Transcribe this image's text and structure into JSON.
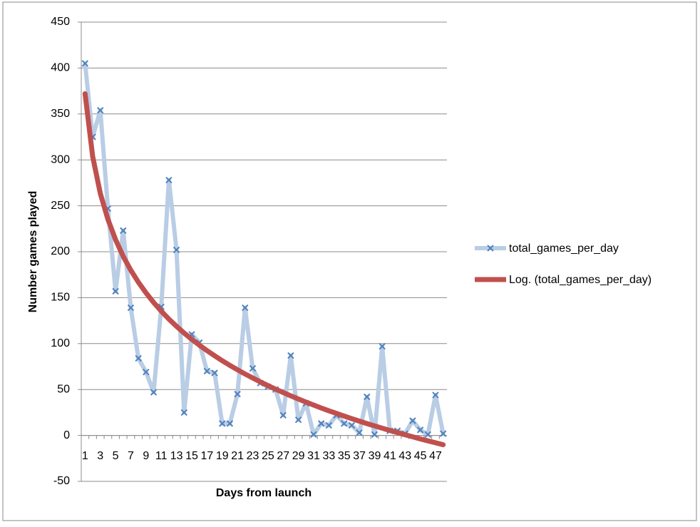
{
  "chart_data": {
    "type": "line",
    "x_label": "Days from launch",
    "y_label": "Number games played",
    "categories": [
      "1",
      null,
      "3",
      null,
      "5",
      null,
      "7",
      null,
      "9",
      null,
      "11",
      null,
      "13",
      null,
      "15",
      null,
      "17",
      null,
      "19",
      null,
      "21",
      null,
      "23",
      null,
      "25",
      null,
      "27",
      null,
      "29",
      null,
      "31",
      null,
      "33",
      null,
      "35",
      null,
      "37",
      null,
      "39",
      null,
      "41",
      null,
      "43",
      null,
      "45",
      null,
      "47",
      null
    ],
    "series": [
      {
        "name": "total_games_per_day",
        "color": "#b9cde5",
        "marker_color": "#4f81bd",
        "values": [
          405,
          325,
          354,
          247,
          157,
          223,
          139,
          84,
          69,
          47,
          140,
          278,
          202,
          25,
          110,
          101,
          70,
          68,
          13,
          13,
          45,
          139,
          73,
          57,
          53,
          50,
          22,
          87,
          17,
          35,
          1,
          13,
          11,
          22,
          13,
          11,
          3,
          42,
          1,
          97,
          5,
          5,
          2,
          16,
          6,
          1,
          44,
          2
        ]
      },
      {
        "name": "Log. (total_games_per_day)",
        "color": "#c0504d",
        "values": [
          372,
          303.6,
          263.5,
          235.2,
          213.2,
          195.1,
          179.9,
          166.8,
          155.2,
          144.7,
          135.3,
          126.7,
          118.8,
          111.5,
          104.7,
          98.3,
          92.4,
          86.8,
          81.4,
          76.3,
          71.5,
          66.9,
          62.6,
          58.3,
          54.3,
          50.4,
          46.7,
          43.1,
          39.7,
          36.3,
          33.1,
          29.9,
          26.8,
          24.0,
          21.1,
          18.3,
          15.6,
          12.9,
          10.4,
          7.9,
          5.4,
          3.1,
          0.8,
          -1.5,
          -3.8,
          -5.9,
          -8.0,
          -10.1
        ]
      }
    ],
    "ylim": [
      -50,
      450
    ],
    "yticks": [
      -50,
      0,
      50,
      100,
      150,
      200,
      250,
      300,
      350,
      400,
      450
    ],
    "grid": true,
    "legend": "right"
  }
}
